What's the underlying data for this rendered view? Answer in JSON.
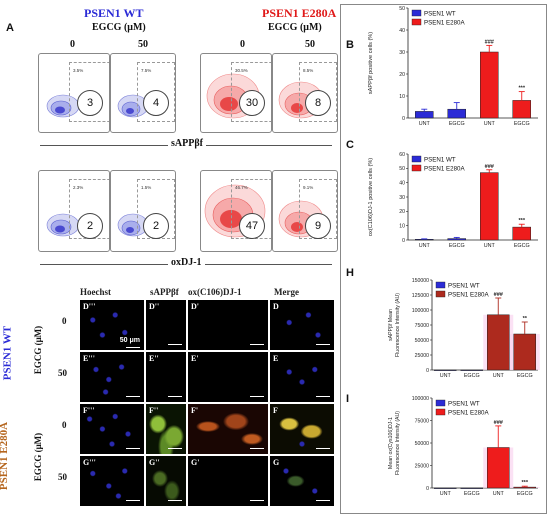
{
  "panel_A": {
    "letter": "A",
    "wt_header": "PSEN1 WT",
    "mut_header": "PSEN1 E280A",
    "egcg_label": "EGCG (μM)",
    "dose_0": "0",
    "dose_50": "50",
    "row1_axis": "sAPPβf",
    "row2_axis": "oxDJ-1",
    "row1": [
      {
        "pct": "3.5%",
        "count": "3"
      },
      {
        "pct": "7.5%",
        "count": "4"
      },
      {
        "pct": "30.5%",
        "count": "30"
      },
      {
        "pct": "8.5%",
        "count": "8"
      }
    ],
    "row2": [
      {
        "pct": "2.3%",
        "count": "2"
      },
      {
        "pct": "1.5%",
        "count": "2"
      },
      {
        "pct": "46.7%",
        "count": "47"
      },
      {
        "pct": "9.1%",
        "count": "9"
      }
    ],
    "colors": {
      "wt": "#4a4ad0",
      "mut": "#e84848"
    }
  },
  "panel_micro": {
    "columns": [
      "Hoechst",
      "sAPPβf",
      "ox(C106)DJ-1",
      "Merge"
    ],
    "wt_label": "PSEN1 WT",
    "mut_label": "PSEN1 E280A",
    "egcg_label": "EGCG (μM)",
    "scale_label": "50 μm",
    "rows": [
      {
        "dose": "0",
        "labels": [
          "D'''",
          "D''",
          "D'",
          "D"
        ]
      },
      {
        "dose": "50",
        "labels": [
          "E'''",
          "E''",
          "E'",
          "E"
        ]
      },
      {
        "dose": "0",
        "labels": [
          "F'''",
          "F''",
          "F'",
          "F"
        ]
      },
      {
        "dose": "50",
        "labels": [
          "G'''",
          "G''",
          "G'",
          "G"
        ]
      }
    ]
  },
  "chart_data": [
    {
      "panel": "B",
      "type": "bar",
      "categories": [
        "UNT",
        "EGCG",
        "UNT",
        "EGCG"
      ],
      "series": [
        {
          "name": "PSEN1 WT",
          "color": "#2b2bd6",
          "values": [
            3,
            4,
            null,
            null
          ],
          "err": [
            1,
            3,
            null,
            null
          ]
        },
        {
          "name": "PSEN1 E280A",
          "color": "#ee1c1c",
          "values": [
            null,
            null,
            30,
            8
          ],
          "err": [
            null,
            null,
            3,
            4
          ]
        }
      ],
      "ylabel": "sAPPβf positive cells (%)",
      "yticks": [
        "0",
        "10",
        "20",
        "30",
        "40",
        "50"
      ],
      "ylim": [
        0,
        50
      ],
      "annotations": [
        "###",
        "***"
      ],
      "legend": "top-left"
    },
    {
      "panel": "C",
      "type": "bar",
      "categories": [
        "UNT",
        "EGCG",
        "UNT",
        "EGCG"
      ],
      "series": [
        {
          "name": "PSEN1 WT",
          "color": "#2b2bd6",
          "values": [
            0.5,
            1,
            null,
            null
          ],
          "err": [
            0.3,
            0.8,
            null,
            null
          ]
        },
        {
          "name": "PSEN1 E280A",
          "color": "#ee1c1c",
          "values": [
            null,
            null,
            47,
            9
          ],
          "err": [
            null,
            null,
            2,
            2
          ]
        }
      ],
      "ylabel": "ox(C106)DJ-1 positive cells (%)",
      "yticks": [
        "0",
        "10",
        "20",
        "30",
        "40",
        "50",
        "60"
      ],
      "ylim": [
        0,
        60
      ],
      "annotations": [
        "###",
        "***"
      ],
      "legend": "top-left"
    },
    {
      "panel": "H",
      "type": "bar",
      "categories": [
        "UNT",
        "EGCG",
        "UNT",
        "EGCG"
      ],
      "series": [
        {
          "name": "PSEN1 WT",
          "color": "#2b2bd6",
          "values": [
            0,
            0,
            null,
            null
          ],
          "err": [
            0,
            0,
            null,
            null
          ]
        },
        {
          "name": "PSEN1 E280A",
          "color": "#ad2a1e",
          "values": [
            null,
            null,
            92000,
            60000
          ],
          "err": [
            null,
            null,
            28000,
            20000
          ]
        }
      ],
      "ylabel": "sAPPβf Mean Fluorescence Intensity (AU)",
      "yticks": [
        "0",
        "25000",
        "50000",
        "75000",
        "100000",
        "125000",
        "150000"
      ],
      "ylim": [
        0,
        150000
      ],
      "annotations": [
        "###",
        "**"
      ],
      "legend": "top-left"
    },
    {
      "panel": "I",
      "type": "bar",
      "categories": [
        "UNT",
        "EGCG",
        "UNT",
        "EGCG"
      ],
      "series": [
        {
          "name": "PSEN1 WT",
          "color": "#2b2bd6",
          "values": [
            0,
            0,
            null,
            null
          ],
          "err": [
            0,
            0,
            null,
            null
          ]
        },
        {
          "name": "PSEN1 E280A",
          "color": "#ee1c1c",
          "values": [
            null,
            null,
            45000,
            1000
          ],
          "err": [
            null,
            null,
            24000,
            1000
          ]
        }
      ],
      "ylabel": "Mean ox(Cys106)DJ-1 Fluorescence Intensity (AU)",
      "yticks": [
        "0",
        "25000",
        "50000",
        "75000",
        "100000"
      ],
      "ylim": [
        0,
        100000
      ],
      "annotations": [
        "###",
        "***"
      ],
      "legend": "top-left"
    }
  ]
}
